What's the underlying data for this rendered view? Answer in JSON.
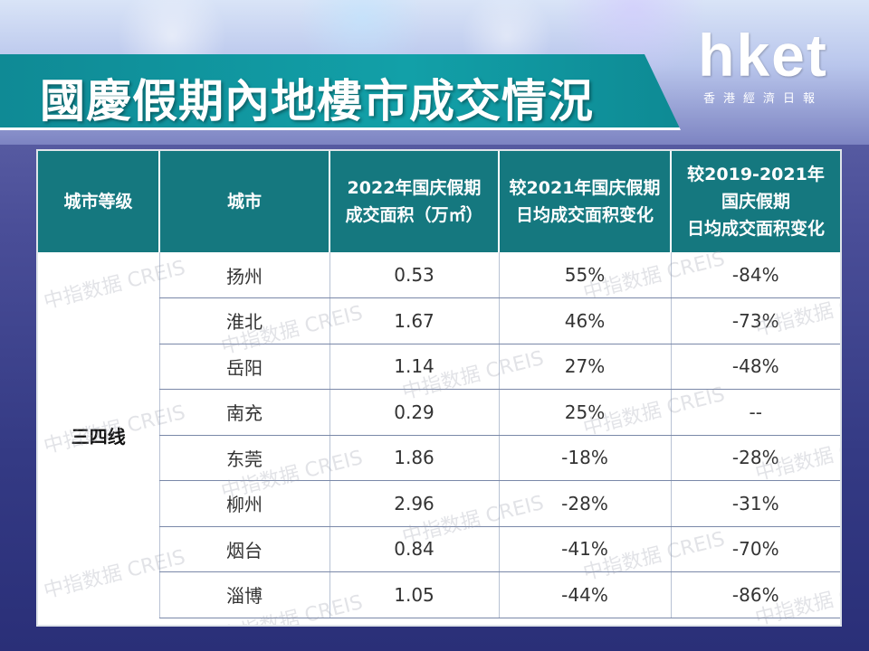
{
  "title": "國慶假期內地樓市成交情況",
  "logo": {
    "main": "hket",
    "sub": "香港經濟日報"
  },
  "table": {
    "headers": [
      {
        "lines": [
          "城市等级"
        ]
      },
      {
        "lines": [
          "城市"
        ]
      },
      {
        "lines": [
          "2022年国庆假期",
          "成交面积（万㎡）"
        ]
      },
      {
        "lines": [
          "较2021年国庆假期",
          "日均成交面积变化"
        ]
      },
      {
        "lines": [
          "较2019-2021年",
          "国庆假期",
          "日均成交面积变化"
        ]
      }
    ],
    "tier": "三四线",
    "rows": [
      {
        "city": "扬州",
        "area": "0.53",
        "vs2021": "55%",
        "vs2019_2021": "-84%"
      },
      {
        "city": "淮北",
        "area": "1.67",
        "vs2021": "46%",
        "vs2019_2021": "-73%"
      },
      {
        "city": "岳阳",
        "area": "1.14",
        "vs2021": "27%",
        "vs2019_2021": "-48%"
      },
      {
        "city": "南充",
        "area": "0.29",
        "vs2021": "25%",
        "vs2019_2021": "--"
      },
      {
        "city": "东莞",
        "area": "1.86",
        "vs2021": "-18%",
        "vs2019_2021": "-28%"
      },
      {
        "city": "柳州",
        "area": "2.96",
        "vs2021": "-28%",
        "vs2019_2021": "-31%"
      },
      {
        "city": "烟台",
        "area": "0.84",
        "vs2021": "-41%",
        "vs2019_2021": "-70%"
      },
      {
        "city": "淄博",
        "area": "1.05",
        "vs2021": "-44%",
        "vs2019_2021": "-86%"
      }
    ]
  },
  "watermark": "中指数据 CREIS"
}
